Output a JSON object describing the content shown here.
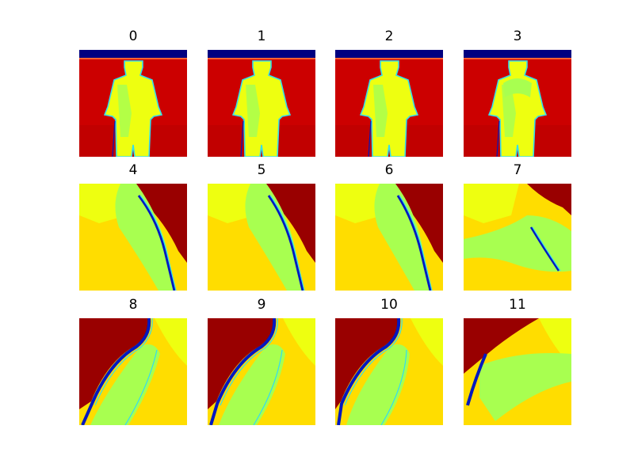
{
  "figure": {
    "panels": [
      {
        "title": "0",
        "kind": "person",
        "variant": 0
      },
      {
        "title": "1",
        "kind": "person",
        "variant": 1
      },
      {
        "title": "2",
        "kind": "person",
        "variant": 2
      },
      {
        "title": "3",
        "kind": "person",
        "variant": 3
      },
      {
        "title": "4",
        "kind": "closeup",
        "variant": 0
      },
      {
        "title": "5",
        "kind": "closeup",
        "variant": 1
      },
      {
        "title": "6",
        "kind": "closeup",
        "variant": 2
      },
      {
        "title": "7",
        "kind": "closeup",
        "variant": 3
      },
      {
        "title": "8",
        "kind": "arm",
        "variant": 0
      },
      {
        "title": "9",
        "kind": "arm",
        "variant": 1
      },
      {
        "title": "10",
        "kind": "arm",
        "variant": 2
      },
      {
        "title": "11",
        "kind": "arm",
        "variant": 3
      }
    ],
    "colors": {
      "far": "#990000",
      "background": "#cc0000",
      "mid": "#ffdd00",
      "near": "#a8ff50",
      "bright": "#eeff10",
      "edge": "#0018c0",
      "edge_light": "#33ddee",
      "top_band": "#000080",
      "floor_line": "#ff6030"
    }
  }
}
